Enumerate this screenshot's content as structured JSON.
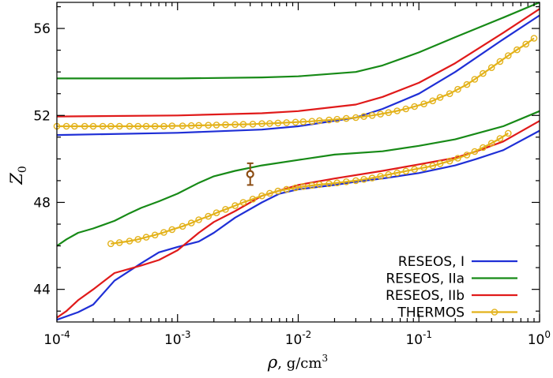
{
  "chart_data": {
    "type": "line",
    "title": "",
    "xlabel": "ρ, g/cm³",
    "xlabel_parts": {
      "symbol": "ρ",
      "unit": ", g/cm",
      "exp": "3"
    },
    "ylabel": "Z₀",
    "ylabel_parts": {
      "symbol": "Z",
      "sub": "0"
    },
    "xscale": "log",
    "xlim": [
      0.0001,
      1
    ],
    "ylim": [
      42.5,
      57.2
    ],
    "grid": false,
    "legend_position": "bottom-right",
    "x_ticks": [
      {
        "value": 0.0001,
        "base": "10",
        "exp": "-4"
      },
      {
        "value": 0.001,
        "base": "10",
        "exp": "-3"
      },
      {
        "value": 0.01,
        "base": "10",
        "exp": "-2"
      },
      {
        "value": 0.1,
        "base": "10",
        "exp": "-1"
      },
      {
        "value": 1,
        "base": "10",
        "exp": "0"
      }
    ],
    "y_ticks": [
      {
        "value": 44,
        "label": "44"
      },
      {
        "value": 48,
        "label": "48"
      },
      {
        "value": 52,
        "label": "52"
      },
      {
        "value": 56,
        "label": "56"
      }
    ],
    "series": [
      {
        "name": "RESEOS, I",
        "color": "#1f2fd6",
        "style": "line",
        "segments": [
          {
            "x": [
              0.0001,
              0.001,
              0.005,
              0.01,
              0.03,
              0.05,
              0.1,
              0.2,
              0.5,
              1
            ],
            "y": [
              51.1,
              51.2,
              51.35,
              51.5,
              51.9,
              52.3,
              53.0,
              54.0,
              55.5,
              56.6
            ]
          },
          {
            "x": [
              0.0001,
              0.00015,
              0.0002,
              0.0003,
              0.0005,
              0.0007,
              0.001,
              0.0015,
              0.002,
              0.003,
              0.005,
              0.007,
              0.01,
              0.02,
              0.03,
              0.05,
              0.1,
              0.2,
              0.3,
              0.5,
              1
            ],
            "y": [
              42.6,
              42.95,
              43.3,
              44.4,
              45.2,
              45.7,
              45.95,
              46.2,
              46.6,
              47.3,
              48.0,
              48.4,
              48.6,
              48.8,
              48.95,
              49.1,
              49.35,
              49.7,
              50.0,
              50.4,
              51.3
            ]
          }
        ]
      },
      {
        "name": "RESEOS, IIa",
        "color": "#178a17",
        "style": "line",
        "segments": [
          {
            "x": [
              0.0001,
              0.001,
              0.005,
              0.01,
              0.03,
              0.05,
              0.1,
              0.2,
              0.5,
              1
            ],
            "y": [
              53.7,
              53.7,
              53.75,
              53.8,
              54.0,
              54.3,
              54.9,
              55.6,
              56.5,
              57.2
            ]
          },
          {
            "x": [
              0.0001,
              0.00012,
              0.00015,
              0.0002,
              0.0003,
              0.0004,
              0.0005,
              0.0007,
              0.001,
              0.0015,
              0.002,
              0.003,
              0.005,
              0.01,
              0.02,
              0.05,
              0.1,
              0.2,
              0.5,
              1
            ],
            "y": [
              46.0,
              46.3,
              46.6,
              46.8,
              47.15,
              47.5,
              47.75,
              48.05,
              48.4,
              48.9,
              49.2,
              49.45,
              49.7,
              49.95,
              50.2,
              50.35,
              50.6,
              50.9,
              51.5,
              52.2
            ]
          }
        ]
      },
      {
        "name": "RESEOS, IIb",
        "color": "#e01a1a",
        "style": "line",
        "segments": [
          {
            "x": [
              0.0001,
              0.001,
              0.005,
              0.01,
              0.03,
              0.05,
              0.1,
              0.2,
              0.5,
              1
            ],
            "y": [
              51.95,
              52.0,
              52.1,
              52.2,
              52.5,
              52.85,
              53.5,
              54.4,
              55.8,
              56.9
            ]
          },
          {
            "x": [
              0.0001,
              0.00012,
              0.00015,
              0.0002,
              0.0003,
              0.0005,
              0.0007,
              0.001,
              0.0015,
              0.002,
              0.003,
              0.005,
              0.01,
              0.02,
              0.05,
              0.1,
              0.2,
              0.3,
              0.5,
              1
            ],
            "y": [
              42.7,
              43.0,
              43.5,
              44.0,
              44.75,
              45.1,
              45.35,
              45.8,
              46.6,
              47.1,
              47.6,
              48.3,
              48.8,
              49.1,
              49.45,
              49.75,
              50.05,
              50.35,
              50.8,
              51.75
            ]
          }
        ]
      },
      {
        "name": "THERMOS",
        "color": "#e3b21a",
        "style": "line+circles",
        "segments": [
          {
            "x": [
              0.0001,
              0.00012,
              0.00014,
              0.00017,
              0.0002,
              0.00024,
              0.00028,
              0.00033,
              0.0004,
              0.00047,
              0.00055,
              0.00065,
              0.00077,
              0.0009,
              0.0011,
              0.0013,
              0.0015,
              0.0018,
              0.0021,
              0.0025,
              0.003,
              0.0035,
              0.0042,
              0.005,
              0.0058,
              0.0068,
              0.008,
              0.0095,
              0.011,
              0.013,
              0.015,
              0.018,
              0.021,
              0.025,
              0.03,
              0.035,
              0.041,
              0.048,
              0.056,
              0.066,
              0.078,
              0.092,
              0.11,
              0.13,
              0.15,
              0.18,
              0.21,
              0.25,
              0.29,
              0.34,
              0.4,
              0.47,
              0.55,
              0.65,
              0.77,
              0.9
            ],
            "y": [
              51.5,
              51.5,
              51.5,
              51.5,
              51.5,
              51.5,
              51.5,
              51.5,
              51.5,
              51.5,
              51.5,
              51.5,
              51.5,
              51.52,
              51.52,
              51.53,
              51.54,
              51.55,
              51.56,
              51.57,
              51.58,
              51.59,
              51.6,
              51.62,
              51.63,
              51.65,
              51.67,
              51.69,
              51.71,
              51.73,
              51.76,
              51.79,
              51.82,
              51.86,
              51.9,
              51.95,
              52.0,
              52.06,
              52.13,
              52.21,
              52.3,
              52.41,
              52.53,
              52.67,
              52.83,
              53.0,
              53.2,
              53.42,
              53.66,
              53.93,
              54.2,
              54.48,
              54.75,
              55.02,
              55.28,
              55.55
            ]
          },
          {
            "x": [
              0.00028,
              0.00033,
              0.0004,
              0.00047,
              0.00055,
              0.00065,
              0.00077,
              0.0009,
              0.0011,
              0.0013,
              0.0015,
              0.0018,
              0.0021,
              0.0025,
              0.003,
              0.0035,
              0.0042,
              0.005,
              0.0058,
              0.0068,
              0.008,
              0.0095,
              0.011,
              0.013,
              0.015,
              0.018,
              0.021,
              0.025,
              0.03,
              0.035,
              0.041,
              0.048,
              0.056,
              0.066,
              0.078,
              0.092,
              0.11,
              0.13,
              0.15,
              0.18,
              0.21,
              0.25,
              0.29,
              0.34,
              0.4,
              0.47,
              0.55
            ],
            "y": [
              46.1,
              46.15,
              46.22,
              46.3,
              46.4,
              46.5,
              46.62,
              46.75,
              46.9,
              47.05,
              47.2,
              47.36,
              47.52,
              47.68,
              47.85,
              48.0,
              48.15,
              48.3,
              48.42,
              48.52,
              48.6,
              48.67,
              48.73,
              48.78,
              48.82,
              48.86,
              48.9,
              48.95,
              49.0,
              49.06,
              49.12,
              49.2,
              49.28,
              49.36,
              49.44,
              49.52,
              49.6,
              49.68,
              49.78,
              49.9,
              50.03,
              50.18,
              50.34,
              50.52,
              50.72,
              50.94,
              51.18
            ]
          }
        ]
      }
    ],
    "annotations": [
      {
        "type": "errorbar-point",
        "x": 0.004,
        "y": 49.3,
        "yerr": 0.5,
        "color": "#8b4c12"
      }
    ]
  }
}
